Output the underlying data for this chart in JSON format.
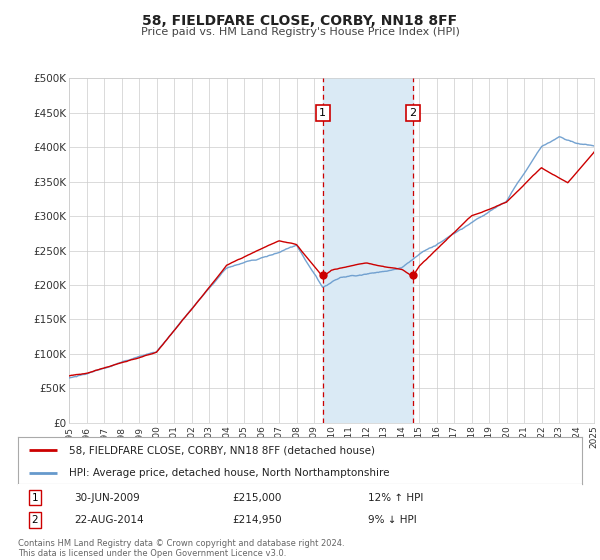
{
  "title": "58, FIELDFARE CLOSE, CORBY, NN18 8FF",
  "subtitle": "Price paid vs. HM Land Registry's House Price Index (HPI)",
  "legend_line1": "58, FIELDFARE CLOSE, CORBY, NN18 8FF (detached house)",
  "legend_line2": "HPI: Average price, detached house, North Northamptonshire",
  "annotation1_date": "30-JUN-2009",
  "annotation1_price": "£215,000",
  "annotation1_hpi": "12% ↑ HPI",
  "annotation1_year": 2009.5,
  "annotation1_value": 215000,
  "annotation2_date": "22-AUG-2014",
  "annotation2_price": "£214,950",
  "annotation2_hpi": "9% ↓ HPI",
  "annotation2_year": 2014.64,
  "annotation2_value": 214950,
  "red_line_color": "#cc0000",
  "blue_line_color": "#6699cc",
  "shaded_region_color": "#daeaf5",
  "grid_color": "#cccccc",
  "background_color": "#ffffff",
  "ylim": [
    0,
    500000
  ],
  "xlim_start": 1995,
  "xlim_end": 2025,
  "footer_text": "Contains HM Land Registry data © Crown copyright and database right 2024.\nThis data is licensed under the Open Government Licence v3.0.",
  "ytick_labels": [
    "£0",
    "£50K",
    "£100K",
    "£150K",
    "£200K",
    "£250K",
    "£300K",
    "£350K",
    "£400K",
    "£450K",
    "£500K"
  ],
  "ytick_values": [
    0,
    50000,
    100000,
    150000,
    200000,
    250000,
    300000,
    350000,
    400000,
    450000,
    500000
  ]
}
